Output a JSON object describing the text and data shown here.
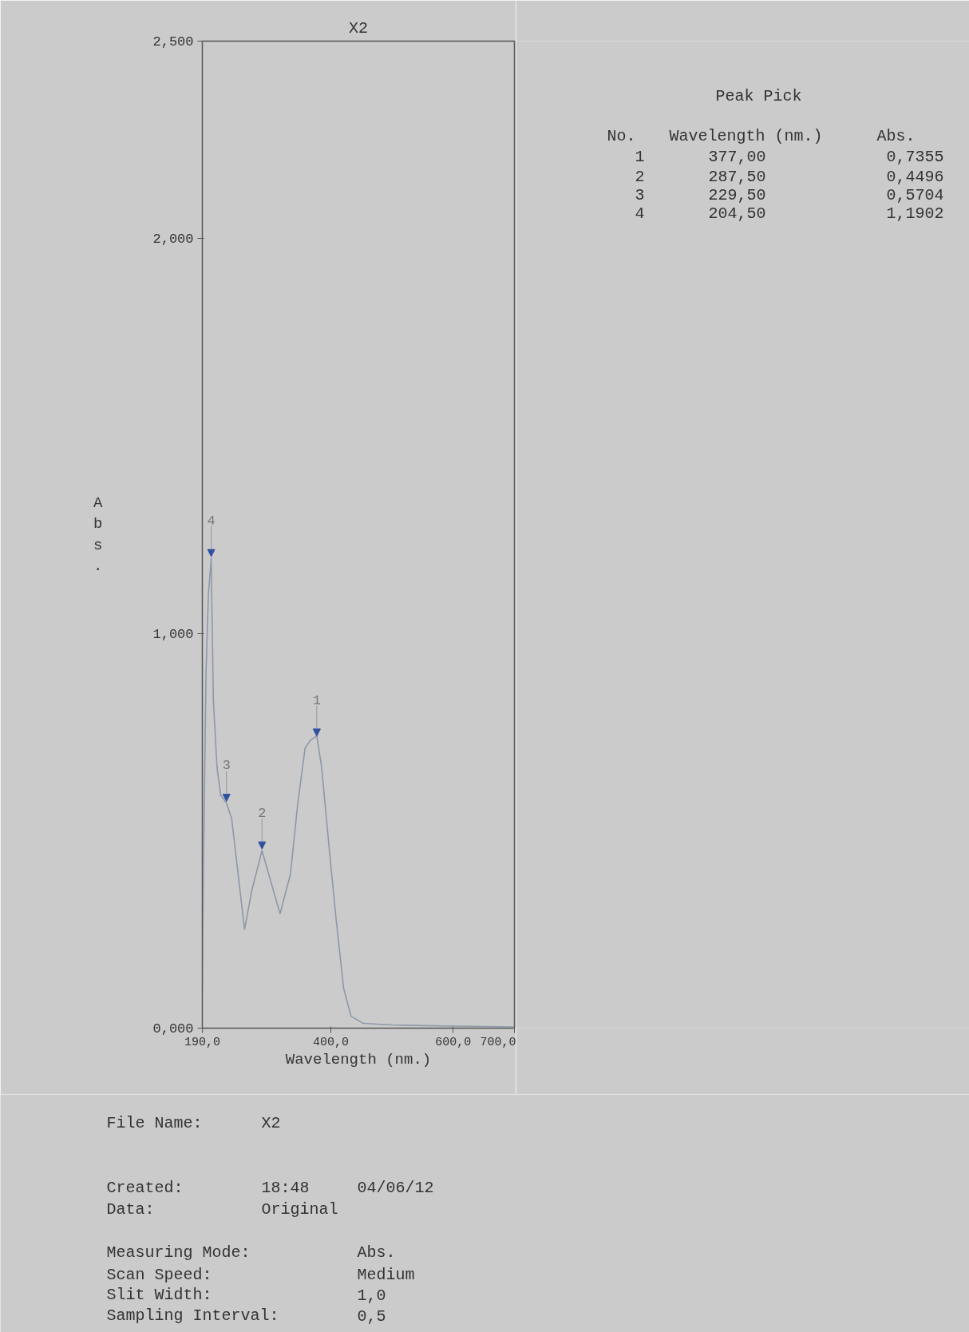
{
  "chart_data": {
    "type": "line",
    "title": "X2",
    "xlabel": "Wavelength (nm.)",
    "ylabel": "Abs.",
    "x": [
      190,
      192,
      196,
      200,
      204.5,
      208,
      214,
      220,
      229.5,
      238,
      247,
      259,
      271,
      287.5,
      304,
      317,
      334,
      346,
      358,
      367,
      377,
      385,
      397,
      409,
      421,
      433,
      453,
      500,
      600,
      700
    ],
    "series": [
      {
        "color": "#8d98a8",
        "values": [
          0.1,
          0.42,
          0.9,
          1.1,
          1.19,
          0.83,
          0.66,
          0.59,
          0.57,
          0.53,
          0.41,
          0.25,
          0.35,
          0.45,
          0.36,
          0.29,
          0.39,
          0.57,
          0.71,
          0.73,
          0.74,
          0.66,
          0.46,
          0.27,
          0.1,
          0.03,
          0.012,
          0.008,
          0.005,
          0.003
        ]
      }
    ],
    "xlim": [
      190,
      700
    ],
    "ylim": [
      0,
      2.5
    ],
    "xticks": [
      {
        "value": 190,
        "label": "190,0"
      },
      {
        "value": 400,
        "label": "400,0"
      },
      {
        "value": 600,
        "label": "600,0"
      },
      {
        "value": 700,
        "label": "700,0"
      }
    ],
    "yticks": [
      {
        "value": 0,
        "label": "0,000"
      },
      {
        "value": 1,
        "label": "1,000"
      },
      {
        "value": 2,
        "label": "2,000"
      },
      {
        "value": 2.5,
        "label": "2,500"
      }
    ],
    "annotations": [
      {
        "text": "1",
        "x": 377,
        "y": 0.7355
      },
      {
        "text": "2",
        "x": 287.5,
        "y": 0.4496
      },
      {
        "text": "3",
        "x": 229.5,
        "y": 0.5704
      },
      {
        "text": "4",
        "x": 204.5,
        "y": 1.1902
      },
      "Peak Pick",
      "No.",
      "Wavelength (nm.)",
      "Abs.",
      "1",
      "377,00",
      "0,7355",
      "2",
      "287,50",
      "0,4496",
      "3",
      "229,50",
      "0,5704",
      "4",
      "204,50",
      "1,1902",
      "File Name:",
      "X2",
      "Created:",
      "18:48",
      "04/06/12",
      "Data:",
      "Original",
      "Measuring Mode:",
      "Abs.",
      "Scan Speed:",
      "Medium",
      "Slit Width:",
      "1,0",
      "Sampling Interval:",
      "0,5"
    ]
  }
}
